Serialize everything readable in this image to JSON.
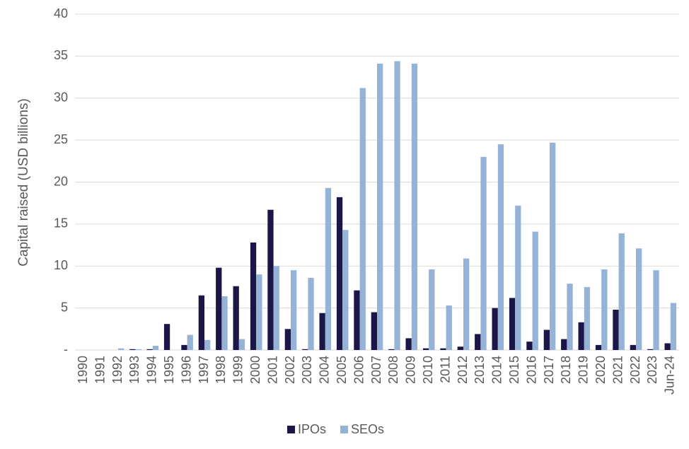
{
  "chart_data": {
    "type": "bar",
    "y_label": "Capital raised (USD billions)",
    "categories": [
      "1990",
      "1991",
      "1992",
      "1993",
      "1994",
      "1995",
      "1996",
      "1997",
      "1998",
      "1999",
      "2000",
      "2001",
      "2002",
      "2003",
      "2004",
      "2005",
      "2006",
      "2007",
      "2008",
      "2009",
      "2010",
      "2011",
      "2012",
      "2013",
      "2014",
      "2015",
      "2016",
      "2017",
      "2018",
      "2019",
      "2020",
      "2021",
      "2022",
      "2023",
      "Jun-24"
    ],
    "series": [
      {
        "name": "IPOs",
        "color": "#1b1548",
        "values": [
          0,
          0,
          0,
          0.1,
          0.1,
          3.1,
          0.6,
          6.5,
          9.8,
          7.6,
          12.8,
          16.7,
          2.5,
          0.1,
          4.4,
          18.2,
          7.1,
          4.5,
          0.1,
          1.4,
          0.2,
          0.2,
          0.4,
          1.9,
          5.0,
          6.2,
          1.0,
          2.4,
          1.3,
          3.3,
          0.6,
          4.8,
          0.6,
          0.1,
          0.8
        ]
      },
      {
        "name": "SEOs",
        "color": "#95b3d7",
        "values": [
          0,
          0,
          0.2,
          0.1,
          0.5,
          0,
          1.8,
          1.2,
          6.4,
          1.3,
          9.0,
          10.0,
          9.5,
          8.6,
          19.3,
          14.3,
          31.2,
          34.1,
          34.4,
          34.1,
          9.6,
          5.3,
          10.9,
          23.0,
          24.5,
          17.2,
          14.1,
          24.7,
          7.9,
          7.5,
          9.6,
          13.9,
          12.1,
          9.5,
          5.6
        ]
      }
    ],
    "ylim": [
      0,
      40
    ],
    "yticks": [
      {
        "value": 0,
        "label": "-"
      },
      5,
      10,
      15,
      20,
      25,
      30,
      35,
      40
    ],
    "grid": true,
    "legend": "bottom"
  }
}
